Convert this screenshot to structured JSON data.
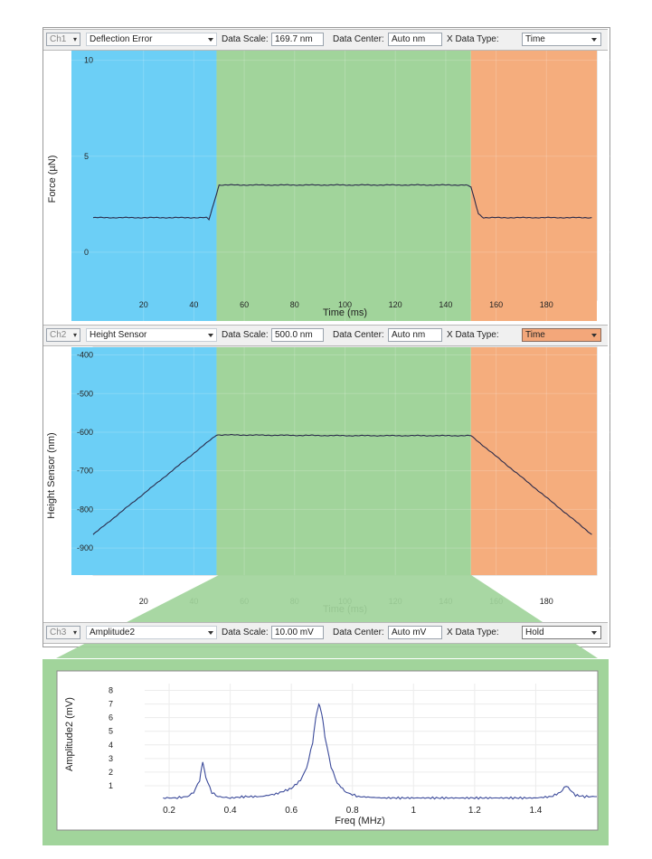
{
  "ch1": {
    "channel": "Ch1",
    "signal": "Deflection Error",
    "data_scale_label": "Data Scale:",
    "data_scale_value": "169.7 nm",
    "data_center_label": "Data Center:",
    "data_center_value": "Auto nm",
    "x_data_type_label": "X Data Type:",
    "x_data_type_value": "Time"
  },
  "ch2": {
    "channel": "Ch2",
    "signal": "Height Sensor",
    "data_scale_label": "Data Scale:",
    "data_scale_value": "500.0 nm",
    "data_center_label": "Data Center:",
    "data_center_value": "Auto nm",
    "x_data_type_label": "X Data Type:",
    "x_data_type_value": "Time"
  },
  "ch3": {
    "channel": "Ch3",
    "signal": "Amplitude2",
    "data_scale_label": "Data Scale:",
    "data_scale_value": "10.00 mV",
    "data_center_label": "Data Center:",
    "data_center_value": "Auto mV",
    "x_data_type_label": "X Data Type:",
    "x_data_type_value": "Hold"
  },
  "colors": {
    "approach": "#6ccff6",
    "hold": "#a1d49b",
    "retract": "#f5ad7d",
    "trace": "#2a2a4a",
    "spectrum": "#3b4a9a"
  },
  "chart_data": [
    {
      "type": "line",
      "xlabel": "Time (ms)",
      "ylabel": "Force (µN)",
      "xticks": [
        20,
        40,
        60,
        80,
        100,
        120,
        140,
        160,
        180
      ],
      "yticks": [
        0,
        5,
        10
      ],
      "xlim": [
        0,
        200
      ],
      "ylim": [
        -2.5,
        10.5
      ],
      "grid": true,
      "regions": [
        {
          "name": "approach",
          "x": [
            -20,
            49
          ]
        },
        {
          "name": "hold",
          "x": [
            49,
            150
          ]
        },
        {
          "name": "retract",
          "x": [
            150,
            200
          ]
        }
      ],
      "x": [
        0,
        45,
        46,
        50,
        148,
        150,
        153,
        155,
        198
      ],
      "y": [
        1.8,
        1.8,
        1.7,
        3.5,
        3.5,
        3.4,
        2.0,
        1.8,
        1.8
      ]
    },
    {
      "type": "line",
      "xlabel": "Time (ms)",
      "ylabel": "Height Sensor (nm)",
      "xticks": [
        20,
        40,
        60,
        80,
        100,
        120,
        140,
        160,
        180
      ],
      "yticks": [
        -400,
        -500,
        -600,
        -700,
        -800,
        -900
      ],
      "xlim": [
        0,
        200
      ],
      "ylim": [
        -970,
        -380
      ],
      "grid": true,
      "regions": [
        {
          "name": "approach",
          "x": [
            -20,
            49
          ]
        },
        {
          "name": "hold",
          "x": [
            49,
            150
          ]
        },
        {
          "name": "retract",
          "x": [
            150,
            200
          ]
        }
      ],
      "x": [
        0,
        49,
        100,
        150,
        198
      ],
      "y": [
        -865,
        -607,
        -609,
        -609,
        -865
      ]
    },
    {
      "type": "line",
      "xlabel": "Freq (MHz)",
      "ylabel": "Amplitude2 (mV)",
      "xticks": [
        0.2,
        0.4,
        0.6,
        0.8,
        1,
        1.2,
        1.4
      ],
      "yticks": [
        1,
        2,
        3,
        4,
        5,
        6,
        7,
        8
      ],
      "xlim": [
        0.12,
        1.6
      ],
      "ylim": [
        0,
        8.5
      ],
      "grid": true,
      "x": [
        0.18,
        0.22,
        0.26,
        0.28,
        0.3,
        0.31,
        0.32,
        0.34,
        0.36,
        0.4,
        0.45,
        0.5,
        0.55,
        0.6,
        0.63,
        0.65,
        0.67,
        0.68,
        0.69,
        0.7,
        0.71,
        0.73,
        0.75,
        0.78,
        0.82,
        0.9,
        1.0,
        1.1,
        1.2,
        1.3,
        1.4,
        1.45,
        1.48,
        1.5,
        1.53,
        1.56,
        1.6
      ],
      "y": [
        0.1,
        0.1,
        0.2,
        0.5,
        1.4,
        2.8,
        1.6,
        0.5,
        0.2,
        0.1,
        0.2,
        0.2,
        0.4,
        0.8,
        1.4,
        2.3,
        4.2,
        6.0,
        7.0,
        6.3,
        4.6,
        2.4,
        1.2,
        0.5,
        0.2,
        0.1,
        0.1,
        0.1,
        0.1,
        0.1,
        0.1,
        0.2,
        0.5,
        1.0,
        0.3,
        0.2,
        0.2
      ]
    }
  ]
}
